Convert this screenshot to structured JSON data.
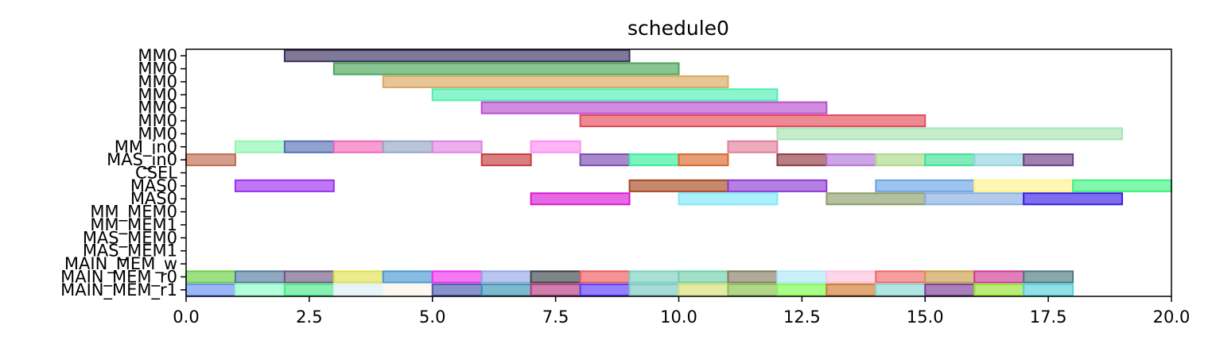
{
  "chart_data": {
    "type": "gantt",
    "title": "schedule0",
    "xlim": [
      0,
      20
    ],
    "x_ticks": [
      "0.0",
      "2.5",
      "5.0",
      "7.5",
      "10.0",
      "12.5",
      "15.0",
      "17.5",
      "20.0"
    ],
    "x_tick_values": [
      0,
      2.5,
      5,
      7.5,
      10,
      12.5,
      15,
      17.5,
      20
    ],
    "rows": [
      "MM0",
      "MM0",
      "MM0",
      "MM0",
      "MM0",
      "MM0",
      "MM0",
      "MM_in0",
      "MAS_in0",
      "CSEL",
      "MAS0",
      "MAS0",
      "MM_MEM0",
      "MM_MEM1",
      "MAS_MEM0",
      "MAS_MEM1",
      "MAIN_MEM_w",
      "MAIN_MEM_r0",
      "MAIN_MEM_r1"
    ],
    "bars": [
      {
        "row": 0,
        "start": 2,
        "end": 9,
        "color": "#3b2f5e"
      },
      {
        "row": 1,
        "start": 3,
        "end": 10,
        "color": "#4aa55a"
      },
      {
        "row": 2,
        "start": 4,
        "end": 11,
        "color": "#d9a860"
      },
      {
        "row": 3,
        "start": 5,
        "end": 12,
        "color": "#4ef0b4"
      },
      {
        "row": 4,
        "start": 6,
        "end": 13,
        "color": "#b84fd0"
      },
      {
        "row": 5,
        "start": 8,
        "end": 15,
        "color": "#e54a5a"
      },
      {
        "row": 6,
        "start": 12,
        "end": 19,
        "color": "#a6e4b2"
      },
      {
        "row": 7,
        "start": 1,
        "end": 2,
        "color": "#8ef7b0"
      },
      {
        "row": 7,
        "start": 2,
        "end": 3,
        "color": "#5570b4"
      },
      {
        "row": 7,
        "start": 3,
        "end": 4,
        "color": "#f268b8"
      },
      {
        "row": 7,
        "start": 4,
        "end": 5,
        "color": "#95a6c6"
      },
      {
        "row": 7,
        "start": 5,
        "end": 6,
        "color": "#de84e2"
      },
      {
        "row": 7,
        "start": 7,
        "end": 8,
        "color": "#ff8ef4"
      },
      {
        "row": 7,
        "start": 11,
        "end": 12,
        "color": "#e47e9a"
      },
      {
        "row": 8,
        "start": 0,
        "end": 1,
        "color": "#bd6a52"
      },
      {
        "row": 8,
        "start": 6,
        "end": 7,
        "color": "#c63a3a"
      },
      {
        "row": 8,
        "start": 8,
        "end": 9,
        "color": "#7a4ab0"
      },
      {
        "row": 8,
        "start": 9,
        "end": 10,
        "color": "#36ee9e"
      },
      {
        "row": 8,
        "start": 10,
        "end": 11,
        "color": "#d8682c"
      },
      {
        "row": 8,
        "start": 12,
        "end": 13,
        "color": "#8e3a44"
      },
      {
        "row": 8,
        "start": 13,
        "end": 14,
        "color": "#b474d6"
      },
      {
        "row": 8,
        "start": 14,
        "end": 15,
        "color": "#abd888"
      },
      {
        "row": 8,
        "start": 15,
        "end": 16,
        "color": "#40e092"
      },
      {
        "row": 8,
        "start": 16,
        "end": 17,
        "color": "#90d4e0"
      },
      {
        "row": 8,
        "start": 17,
        "end": 18,
        "color": "#6c3c86"
      },
      {
        "row": 10,
        "start": 1,
        "end": 3,
        "color": "#9b30f0"
      },
      {
        "row": 10,
        "start": 9,
        "end": 11,
        "color": "#a64a22"
      },
      {
        "row": 10,
        "start": 11,
        "end": 13,
        "color": "#8e3ad4"
      },
      {
        "row": 10,
        "start": 14,
        "end": 16,
        "color": "#6aa4e4"
      },
      {
        "row": 10,
        "start": 16,
        "end": 18,
        "color": "#fff28e"
      },
      {
        "row": 10,
        "start": 18,
        "end": 20,
        "color": "#3cf27e"
      },
      {
        "row": 11,
        "start": 7,
        "end": 9,
        "color": "#d81ad4"
      },
      {
        "row": 11,
        "start": 10,
        "end": 12,
        "color": "#7ee8f8"
      },
      {
        "row": 11,
        "start": 13,
        "end": 15,
        "color": "#8e9e6a"
      },
      {
        "row": 11,
        "start": 15,
        "end": 17,
        "color": "#88aee0"
      },
      {
        "row": 11,
        "start": 17,
        "end": 19,
        "color": "#3a1ee4"
      },
      {
        "row": 17,
        "start": 0,
        "end": 1,
        "color": "#68d040"
      },
      {
        "row": 17,
        "start": 1,
        "end": 2,
        "color": "#547a9e"
      },
      {
        "row": 17,
        "start": 2,
        "end": 3,
        "color": "#6e5a82"
      },
      {
        "row": 17,
        "start": 3,
        "end": 4,
        "color": "#dde050"
      },
      {
        "row": 17,
        "start": 4,
        "end": 5,
        "color": "#4a98d4"
      },
      {
        "row": 17,
        "start": 5,
        "end": 6,
        "color": "#ee30ee"
      },
      {
        "row": 17,
        "start": 6,
        "end": 7,
        "color": "#94a8e8"
      },
      {
        "row": 17,
        "start": 7,
        "end": 8,
        "color": "#3a4448"
      },
      {
        "row": 17,
        "start": 8,
        "end": 9,
        "color": "#ee5a5a"
      },
      {
        "row": 17,
        "start": 9,
        "end": 10,
        "color": "#7ad0c0"
      },
      {
        "row": 17,
        "start": 10,
        "end": 11,
        "color": "#70d0a8"
      },
      {
        "row": 17,
        "start": 11,
        "end": 12,
        "color": "#847c62"
      },
      {
        "row": 17,
        "start": 12,
        "end": 13,
        "color": "#aee8fc"
      },
      {
        "row": 17,
        "start": 13,
        "end": 14,
        "color": "#fcc0dc"
      },
      {
        "row": 17,
        "start": 14,
        "end": 15,
        "color": "#ee6a6a"
      },
      {
        "row": 17,
        "start": 15,
        "end": 16,
        "color": "#c8a04a"
      },
      {
        "row": 17,
        "start": 16,
        "end": 17,
        "color": "#d03a94"
      },
      {
        "row": 17,
        "start": 17,
        "end": 18,
        "color": "#4a7a7e"
      },
      {
        "row": 18,
        "start": 0,
        "end": 1,
        "color": "#6a8ef4"
      },
      {
        "row": 18,
        "start": 1,
        "end": 2,
        "color": "#8efcc8"
      },
      {
        "row": 18,
        "start": 2,
        "end": 3,
        "color": "#4ae88a"
      },
      {
        "row": 18,
        "start": 3,
        "end": 4,
        "color": "#dcf0f4"
      },
      {
        "row": 18,
        "start": 4,
        "end": 5,
        "color": "#fcf4e8"
      },
      {
        "row": 18,
        "start": 5,
        "end": 6,
        "color": "#4a5aae"
      },
      {
        "row": 18,
        "start": 6,
        "end": 7,
        "color": "#3a94b4"
      },
      {
        "row": 18,
        "start": 7,
        "end": 8,
        "color": "#b43a7e"
      },
      {
        "row": 18,
        "start": 8,
        "end": 9,
        "color": "#5a3afc"
      },
      {
        "row": 18,
        "start": 9,
        "end": 10,
        "color": "#7ac8c0"
      },
      {
        "row": 18,
        "start": 10,
        "end": 11,
        "color": "#d4e078"
      },
      {
        "row": 18,
        "start": 11,
        "end": 12,
        "color": "#88c04e"
      },
      {
        "row": 18,
        "start": 12,
        "end": 13,
        "color": "#7cfc4e"
      },
      {
        "row": 18,
        "start": 13,
        "end": 14,
        "color": "#d07a30"
      },
      {
        "row": 18,
        "start": 14,
        "end": 15,
        "color": "#8ad8d4"
      },
      {
        "row": 18,
        "start": 15,
        "end": 16,
        "color": "#7a3e96"
      },
      {
        "row": 18,
        "start": 16,
        "end": 17,
        "color": "#94e02e"
      },
      {
        "row": 18,
        "start": 17,
        "end": 18,
        "color": "#58d0d8"
      }
    ]
  }
}
